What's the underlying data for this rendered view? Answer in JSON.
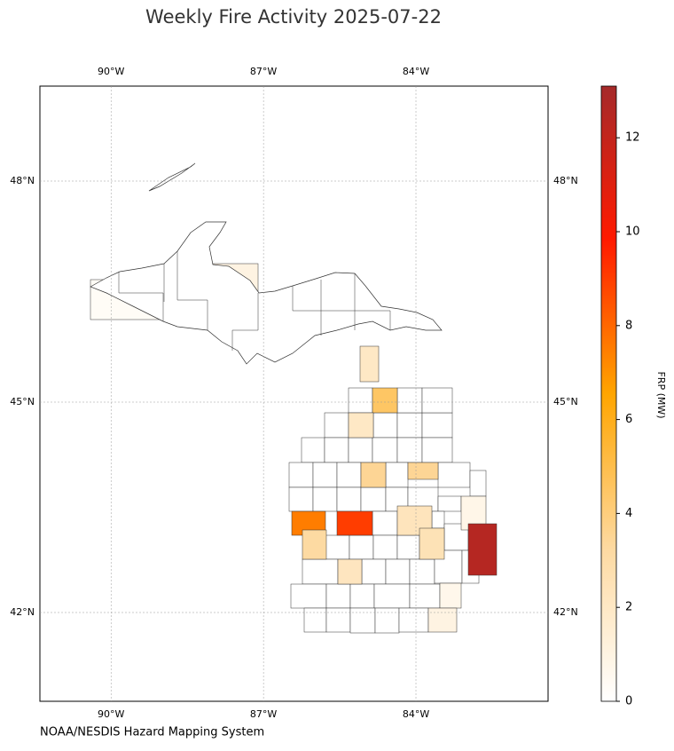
{
  "chart_data": {
    "type": "choropleth",
    "title": "Weekly Fire Activity 2025-07-22",
    "source": "NOAA/NESDIS Hazard Mapping System",
    "colorbar_label": "FRP (MW)",
    "colormap": [
      "#ffffff",
      "#fdd9a0",
      "#ffa500",
      "#ff1a00",
      "#a52a2a"
    ],
    "values": [
      0.3,
      1.0,
      2.0,
      4.5,
      2.0,
      3.5,
      3.5,
      0.8,
      2.3,
      2.5,
      12.5,
      7.5,
      9,
      3.2,
      2.2,
      0.7,
      1.0
    ],
    "xlim": [
      -91.4,
      -81.4
    ],
    "ylim": [
      40.4,
      49.3
    ],
    "xticks": [
      {
        "value": -90,
        "label": "90°W"
      },
      {
        "value": -87,
        "label": "87°W"
      },
      {
        "value": -84,
        "label": "84°W"
      }
    ],
    "yticks": [
      {
        "value": 48,
        "label": "48°N"
      },
      {
        "value": 45,
        "label": "45°N"
      },
      {
        "value": 42,
        "label": "42°N"
      }
    ],
    "clim": [
      0,
      13.1
    ],
    "cticks": [
      0,
      2,
      4,
      6,
      8,
      10,
      12
    ],
    "grid": true
  }
}
